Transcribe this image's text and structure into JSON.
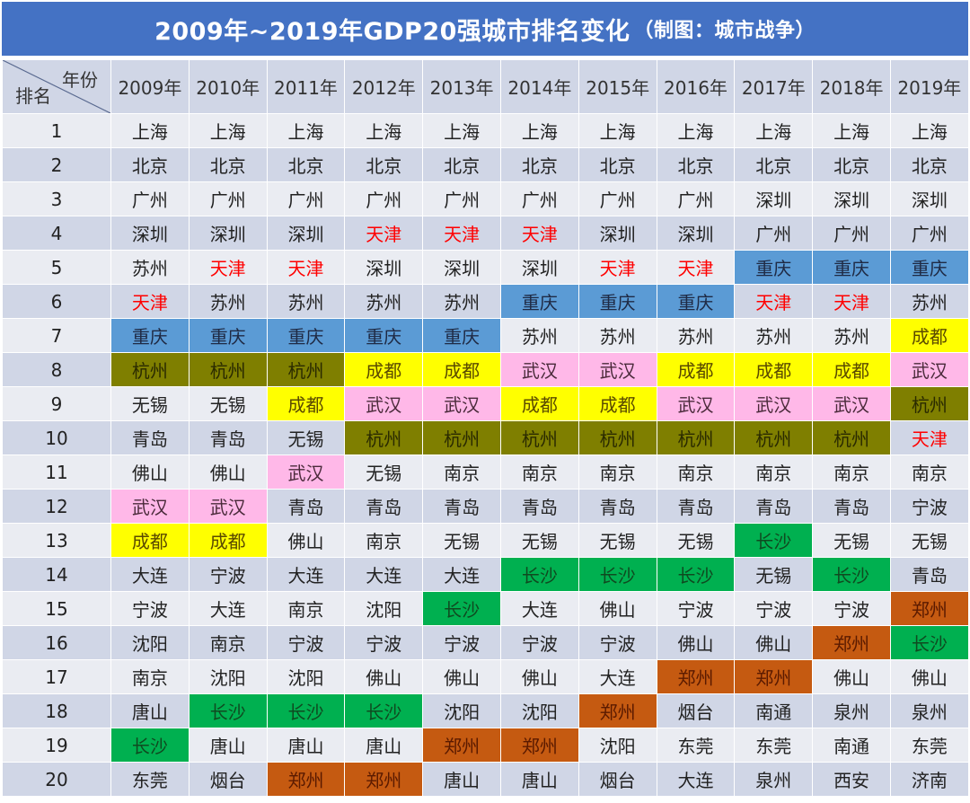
{
  "title": {
    "main": "2009年~2019年GDP20强城市排名变化",
    "credit": "（制图：城市战争）"
  },
  "header": {
    "corner_year_label": "年份",
    "corner_rank_label": "排名",
    "years": [
      "2009年",
      "2010年",
      "2011年",
      "2012年",
      "2013年",
      "2014年",
      "2015年",
      "2016年",
      "2017年",
      "2018年",
      "2019年"
    ]
  },
  "highlight_colors": {
    "重庆": "#5B9BD5",
    "杭州": "#7F7F00",
    "成都": "#FFFF00",
    "武汉": "#FFB8E8",
    "长沙": "#00B050",
    "郑州": "#C55A11",
    "天津_text": "#FF0000",
    "title_bar": "#4472C4",
    "row_light": "#EAECF2",
    "row_dark": "#D0D6E6"
  },
  "chart_data": {
    "type": "table",
    "title": "2009年~2019年GDP20强城市排名变化（制图：城市战争）",
    "columns": [
      "排名",
      "2009年",
      "2010年",
      "2011年",
      "2012年",
      "2013年",
      "2014年",
      "2015年",
      "2016年",
      "2017年",
      "2018年",
      "2019年"
    ],
    "rows": [
      {
        "rank": "1",
        "cities": [
          "上海",
          "上海",
          "上海",
          "上海",
          "上海",
          "上海",
          "上海",
          "上海",
          "上海",
          "上海",
          "上海"
        ]
      },
      {
        "rank": "2",
        "cities": [
          "北京",
          "北京",
          "北京",
          "北京",
          "北京",
          "北京",
          "北京",
          "北京",
          "北京",
          "北京",
          "北京"
        ]
      },
      {
        "rank": "3",
        "cities": [
          "广州",
          "广州",
          "广州",
          "广州",
          "广州",
          "广州",
          "广州",
          "广州",
          "深圳",
          "深圳",
          "深圳"
        ]
      },
      {
        "rank": "4",
        "cities": [
          "深圳",
          "深圳",
          "深圳",
          "天津",
          "天津",
          "天津",
          "深圳",
          "深圳",
          "广州",
          "广州",
          "广州"
        ]
      },
      {
        "rank": "5",
        "cities": [
          "苏州",
          "天津",
          "天津",
          "深圳",
          "深圳",
          "深圳",
          "天津",
          "天津",
          "重庆",
          "重庆",
          "重庆"
        ]
      },
      {
        "rank": "6",
        "cities": [
          "天津",
          "苏州",
          "苏州",
          "苏州",
          "苏州",
          "重庆",
          "重庆",
          "重庆",
          "天津",
          "天津",
          "苏州"
        ]
      },
      {
        "rank": "7",
        "cities": [
          "重庆",
          "重庆",
          "重庆",
          "重庆",
          "重庆",
          "苏州",
          "苏州",
          "苏州",
          "苏州",
          "苏州",
          "成都"
        ]
      },
      {
        "rank": "8",
        "cities": [
          "杭州",
          "杭州",
          "杭州",
          "成都",
          "成都",
          "武汉",
          "武汉",
          "成都",
          "成都",
          "成都",
          "武汉"
        ]
      },
      {
        "rank": "9",
        "cities": [
          "无锡",
          "无锡",
          "成都",
          "武汉",
          "武汉",
          "成都",
          "成都",
          "武汉",
          "武汉",
          "武汉",
          "杭州"
        ]
      },
      {
        "rank": "10",
        "cities": [
          "青岛",
          "青岛",
          "无锡",
          "杭州",
          "杭州",
          "杭州",
          "杭州",
          "杭州",
          "杭州",
          "杭州",
          "天津"
        ]
      },
      {
        "rank": "11",
        "cities": [
          "佛山",
          "佛山",
          "武汉",
          "无锡",
          "南京",
          "南京",
          "南京",
          "南京",
          "南京",
          "南京",
          "南京"
        ]
      },
      {
        "rank": "12",
        "cities": [
          "武汉",
          "武汉",
          "青岛",
          "青岛",
          "青岛",
          "青岛",
          "青岛",
          "青岛",
          "青岛",
          "青岛",
          "宁波"
        ]
      },
      {
        "rank": "13",
        "cities": [
          "成都",
          "成都",
          "佛山",
          "南京",
          "无锡",
          "无锡",
          "无锡",
          "无锡",
          "长沙",
          "无锡",
          "无锡"
        ]
      },
      {
        "rank": "14",
        "cities": [
          "大连",
          "宁波",
          "大连",
          "大连",
          "大连",
          "长沙",
          "长沙",
          "长沙",
          "无锡",
          "长沙",
          "青岛"
        ]
      },
      {
        "rank": "15",
        "cities": [
          "宁波",
          "大连",
          "南京",
          "沈阳",
          "长沙",
          "大连",
          "佛山",
          "宁波",
          "宁波",
          "宁波",
          "郑州"
        ]
      },
      {
        "rank": "16",
        "cities": [
          "沈阳",
          "南京",
          "宁波",
          "宁波",
          "宁波",
          "宁波",
          "宁波",
          "佛山",
          "佛山",
          "郑州",
          "长沙"
        ]
      },
      {
        "rank": "17",
        "cities": [
          "南京",
          "沈阳",
          "沈阳",
          "佛山",
          "佛山",
          "佛山",
          "大连",
          "郑州",
          "郑州",
          "佛山",
          "佛山"
        ]
      },
      {
        "rank": "18",
        "cities": [
          "唐山",
          "长沙",
          "长沙",
          "长沙",
          "沈阳",
          "沈阳",
          "郑州",
          "烟台",
          "南通",
          "泉州",
          "泉州"
        ]
      },
      {
        "rank": "19",
        "cities": [
          "长沙",
          "唐山",
          "唐山",
          "唐山",
          "郑州",
          "郑州",
          "沈阳",
          "东莞",
          "东莞",
          "南通",
          "东莞"
        ]
      },
      {
        "rank": "20",
        "cities": [
          "东莞",
          "烟台",
          "郑州",
          "郑州",
          "唐山",
          "唐山",
          "烟台",
          "大连",
          "泉州",
          "西安",
          "济南"
        ]
      }
    ]
  }
}
